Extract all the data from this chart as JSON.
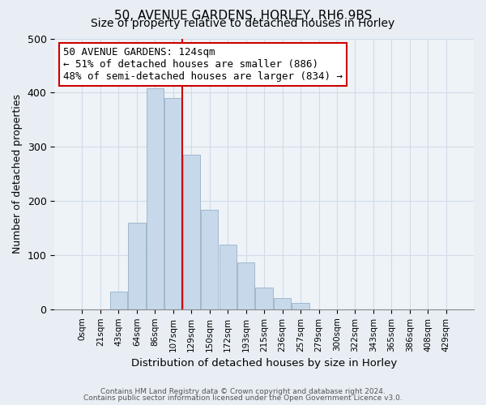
{
  "title": "50, AVENUE GARDENS, HORLEY, RH6 9BS",
  "subtitle": "Size of property relative to detached houses in Horley",
  "xlabel": "Distribution of detached houses by size in Horley",
  "ylabel": "Number of detached properties",
  "bar_labels": [
    "0sqm",
    "21sqm",
    "43sqm",
    "64sqm",
    "86sqm",
    "107sqm",
    "129sqm",
    "150sqm",
    "172sqm",
    "193sqm",
    "215sqm",
    "236sqm",
    "257sqm",
    "279sqm",
    "300sqm",
    "322sqm",
    "343sqm",
    "365sqm",
    "386sqm",
    "408sqm",
    "429sqm"
  ],
  "bar_heights": [
    0,
    0,
    33,
    160,
    408,
    390,
    285,
    183,
    120,
    86,
    40,
    21,
    12,
    0,
    0,
    0,
    0,
    0,
    0,
    0,
    0
  ],
  "bar_color": "#c8d8eb",
  "bar_edge_color": "#a0b8cc",
  "vline_x": 6.0,
  "vline_color": "#cc0000",
  "annotation_title": "50 AVENUE GARDENS: 124sqm",
  "annotation_line1": "← 51% of detached houses are smaller (886)",
  "annotation_line2": "48% of semi-detached houses are larger (834) →",
  "annotation_box_color": "#ffffff",
  "annotation_box_edge_color": "#cc0000",
  "ylim": [
    0,
    500
  ],
  "footnote1": "Contains HM Land Registry data © Crown copyright and database right 2024.",
  "footnote2": "Contains public sector information licensed under the Open Government Licence v3.0.",
  "background_color": "#e8eef4",
  "plot_background_color": "#eef3f8",
  "grid_color": "#d0dce8",
  "title_fontsize": 11,
  "subtitle_fontsize": 10
}
